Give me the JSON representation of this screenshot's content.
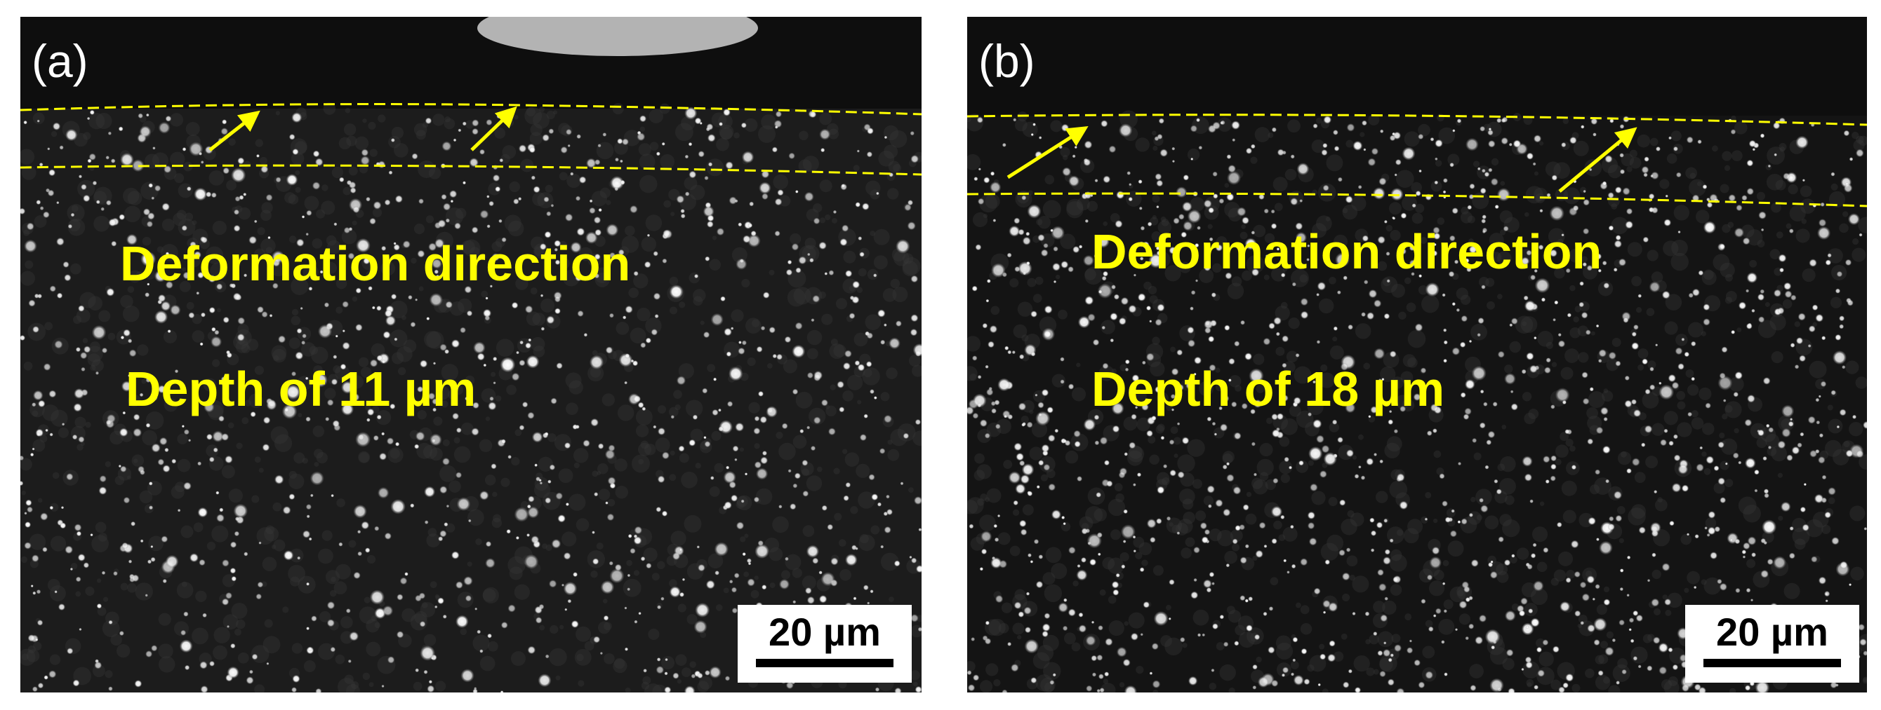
{
  "panels": [
    {
      "label": "(a)",
      "annotations": [
        "Deformation direction",
        "Depth of 11 µm"
      ],
      "scale_bar": "20 µm"
    },
    {
      "label": "(b)",
      "annotations": [
        "Deformation direction",
        "Depth of 18 µm"
      ],
      "scale_bar": "20 µm"
    }
  ]
}
